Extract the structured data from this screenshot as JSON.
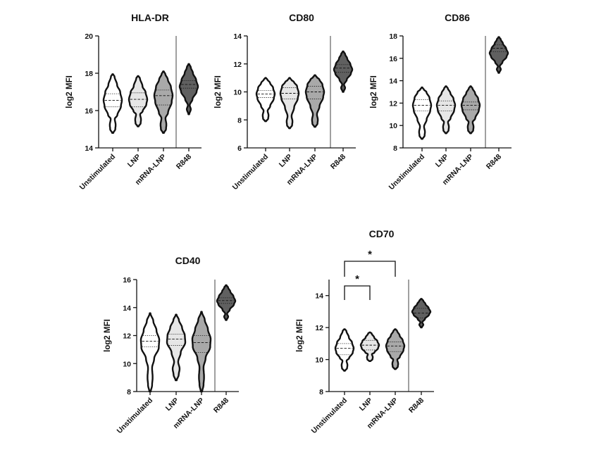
{
  "figure": {
    "y_axis_label": "log2 MFI",
    "categories": [
      "Unstimulated",
      "LNP",
      "mRNA-LNP",
      "R848"
    ],
    "category_colors": [
      "#ffffff",
      "#e6e6e6",
      "#a9a9a9",
      "#606060"
    ]
  },
  "chart_data": [
    {
      "type": "violin",
      "id": "hla",
      "title": "HLA-DR",
      "ylabel": "log2 MFI",
      "ylim": [
        14,
        20
      ],
      "yticks": [
        14,
        16,
        18,
        20
      ],
      "categories": [
        "Unstimulated",
        "LNP",
        "mRNA-LNP",
        "R848"
      ],
      "series": [
        {
          "name": "Unstimulated",
          "min": 14.8,
          "q1": 16.2,
          "median": 16.55,
          "q3": 16.9,
          "max": 17.95
        },
        {
          "name": "LNP",
          "min": 15.15,
          "q1": 16.2,
          "median": 16.6,
          "q3": 16.95,
          "max": 17.85
        },
        {
          "name": "mRNA-LNP",
          "min": 14.8,
          "q1": 16.3,
          "median": 16.8,
          "q3": 17.1,
          "max": 18.1
        },
        {
          "name": "R848",
          "min": 15.8,
          "q1": 17.2,
          "median": 17.4,
          "q3": 17.6,
          "max": 18.5
        }
      ],
      "significance": []
    },
    {
      "type": "violin",
      "id": "cd80",
      "title": "CD80",
      "ylabel": "log2 MFI",
      "ylim": [
        6,
        14
      ],
      "yticks": [
        6,
        8,
        10,
        12,
        14
      ],
      "categories": [
        "Unstimulated",
        "LNP",
        "mRNA-LNP",
        "R848"
      ],
      "series": [
        {
          "name": "Unstimulated",
          "min": 7.9,
          "q1": 9.6,
          "median": 9.85,
          "q3": 10.1,
          "max": 11.0
        },
        {
          "name": "LNP",
          "min": 7.4,
          "q1": 9.5,
          "median": 9.9,
          "q3": 10.3,
          "max": 11.0
        },
        {
          "name": "mRNA-LNP",
          "min": 7.5,
          "q1": 9.5,
          "median": 10.0,
          "q3": 10.4,
          "max": 11.2
        },
        {
          "name": "R848",
          "min": 10.0,
          "q1": 11.4,
          "median": 11.7,
          "q3": 11.95,
          "max": 12.9
        }
      ],
      "significance": []
    },
    {
      "type": "violin",
      "id": "cd86",
      "title": "CD86",
      "ylabel": "log2 MFI",
      "ylim": [
        8,
        18
      ],
      "yticks": [
        8,
        10,
        12,
        14,
        16,
        18
      ],
      "categories": [
        "Unstimulated",
        "LNP",
        "mRNA-LNP",
        "R848"
      ],
      "series": [
        {
          "name": "Unstimulated",
          "min": 8.8,
          "q1": 11.3,
          "median": 11.8,
          "q3": 12.3,
          "max": 13.4
        },
        {
          "name": "LNP",
          "min": 9.3,
          "q1": 11.3,
          "median": 11.8,
          "q3": 12.2,
          "max": 13.5
        },
        {
          "name": "mRNA-LNP",
          "min": 9.3,
          "q1": 11.4,
          "median": 11.8,
          "q3": 12.1,
          "max": 13.5
        },
        {
          "name": "R848",
          "min": 14.7,
          "q1": 16.6,
          "median": 16.9,
          "q3": 17.2,
          "max": 17.9
        }
      ],
      "significance": []
    },
    {
      "type": "violin",
      "id": "cd40",
      "title": "CD40",
      "ylabel": "log2 MFI",
      "ylim": [
        8,
        16
      ],
      "yticks": [
        8,
        10,
        12,
        14,
        16
      ],
      "categories": [
        "Unstimulated",
        "LNP",
        "mRNA-LNP",
        "R848"
      ],
      "series": [
        {
          "name": "Unstimulated",
          "min": 8.0,
          "q1": 11.2,
          "median": 11.6,
          "q3": 12.0,
          "max": 13.6
        },
        {
          "name": "LNP",
          "min": 8.8,
          "q1": 11.3,
          "median": 11.75,
          "q3": 12.1,
          "max": 13.5
        },
        {
          "name": "mRNA-LNP",
          "min": 8.0,
          "q1": 10.8,
          "median": 11.5,
          "q3": 12.0,
          "max": 13.7
        },
        {
          "name": "R848",
          "min": 13.1,
          "q1": 14.3,
          "median": 14.5,
          "q3": 14.7,
          "max": 15.6
        }
      ],
      "significance": []
    },
    {
      "type": "violin",
      "id": "cd70",
      "title": "CD70",
      "ylabel": "log2 MFI",
      "ylim": [
        8,
        15
      ],
      "yticks": [
        8,
        10,
        12,
        14
      ],
      "categories": [
        "Unstimulated",
        "LNP",
        "mRNA-LNP",
        "R848"
      ],
      "series": [
        {
          "name": "Unstimulated",
          "min": 9.3,
          "q1": 10.3,
          "median": 10.7,
          "q3": 11.0,
          "max": 11.9
        },
        {
          "name": "LNP",
          "min": 9.9,
          "q1": 10.6,
          "median": 10.9,
          "q3": 11.2,
          "max": 11.7
        },
        {
          "name": "mRNA-LNP",
          "min": 9.4,
          "q1": 10.5,
          "median": 10.85,
          "q3": 11.1,
          "max": 11.9
        },
        {
          "name": "R848",
          "min": 12.0,
          "q1": 12.6,
          "median": 12.9,
          "q3": 13.2,
          "max": 13.8
        }
      ],
      "significance": [
        {
          "from": "Unstimulated",
          "to": "LNP",
          "label": "*"
        },
        {
          "from": "Unstimulated",
          "to": "mRNA-LNP",
          "label": "*"
        }
      ]
    }
  ]
}
